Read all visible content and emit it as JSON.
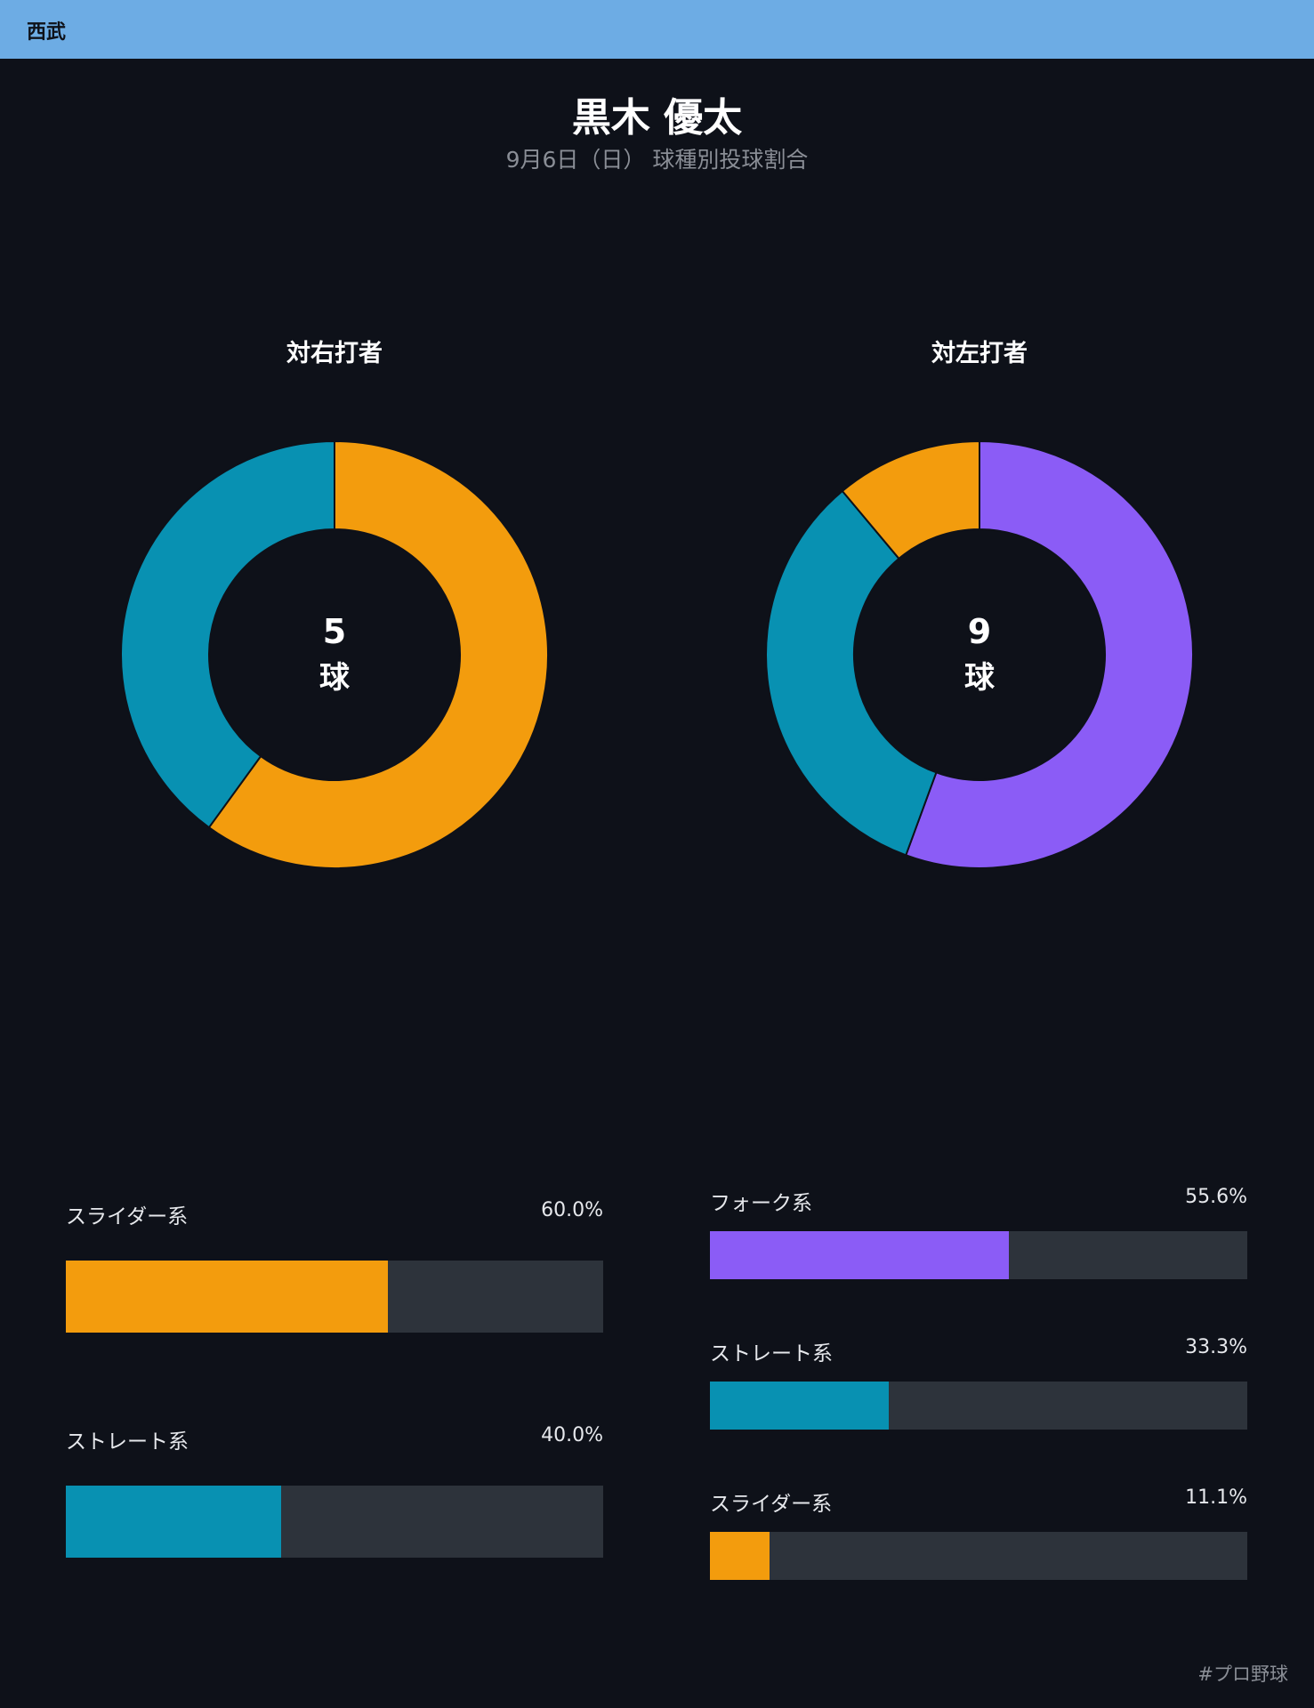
{
  "header": {
    "team": "西武"
  },
  "title": "黒木 優太",
  "subtitle": "9月6日（日） 球種別投球割合",
  "colors": {
    "slider": "#f39c0d",
    "straight": "#0891b2",
    "fork": "#8b5cf6",
    "track": "#2d333b",
    "background": "#0e1119",
    "header": "#6dace4"
  },
  "chart_data": [
    {
      "type": "pie",
      "title": "対右打者",
      "center_count": "5",
      "center_unit": "球",
      "series": [
        {
          "name": "スライダー系",
          "value": 60.0,
          "label": "60.0%",
          "color": "#f39c0d"
        },
        {
          "name": "ストレート系",
          "value": 40.0,
          "label": "40.0%",
          "color": "#0891b2"
        }
      ]
    },
    {
      "type": "pie",
      "title": "対左打者",
      "center_count": "9",
      "center_unit": "球",
      "series": [
        {
          "name": "フォーク系",
          "value": 55.6,
          "label": "55.6%",
          "color": "#8b5cf6"
        },
        {
          "name": "ストレート系",
          "value": 33.3,
          "label": "33.3%",
          "color": "#0891b2"
        },
        {
          "name": "スライダー系",
          "value": 11.1,
          "label": "11.1%",
          "color": "#f39c0d"
        }
      ]
    }
  ],
  "footer": {
    "hashtag": "#プロ野球"
  }
}
